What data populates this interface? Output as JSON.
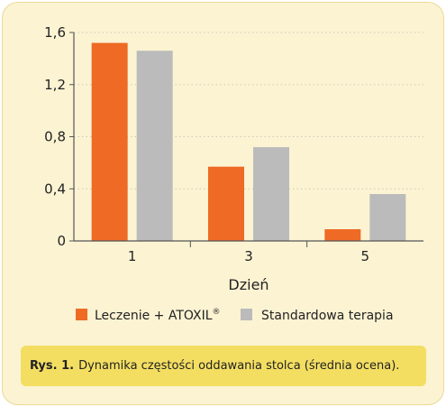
{
  "colors": {
    "panel_bg": "#fbf3d2",
    "caption_bg": "#f3de62",
    "series_1": "#ee6a25",
    "series_2": "#bbbbbb",
    "grid": "#cfc9b8",
    "axis": "#555555"
  },
  "caption": {
    "label": "Rys. 1.",
    "text": "Dynamika częstości oddawania stolca (średnia ocena)."
  },
  "chart_data": {
    "type": "bar",
    "title": "",
    "xlabel": "Dzień",
    "ylabel": "",
    "categories": [
      "1",
      "3",
      "5"
    ],
    "series": [
      {
        "name": "Leczenie + ATOXIL",
        "name_suffix": "®",
        "values": [
          1.52,
          0.57,
          0.09
        ],
        "color": "#ee6a25"
      },
      {
        "name": "Standardowa terapia",
        "values": [
          1.46,
          0.72,
          0.36
        ],
        "color": "#bbbbbb"
      }
    ],
    "ylim": [
      0,
      1.6
    ],
    "y_ticks": [
      0,
      0.4,
      0.8,
      1.2,
      1.6
    ],
    "y_tick_labels": [
      "0",
      "0,4",
      "0,8",
      "1,2",
      "1,6"
    ],
    "grid": "horizontal dotted",
    "legend": "bottom"
  }
}
